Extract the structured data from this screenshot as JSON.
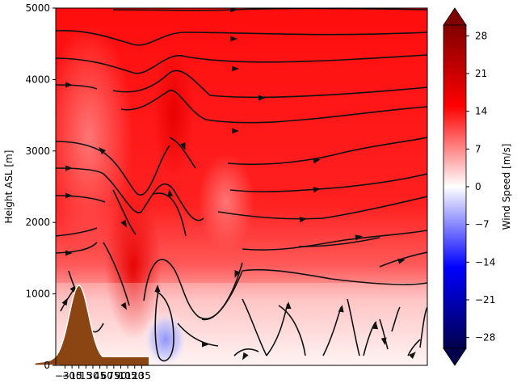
{
  "chart_data": {
    "type": "heatmap",
    "title": "",
    "ylabel": "Height ASL [m]",
    "ylim": [
      0,
      5000
    ],
    "y_ticks": [
      "0",
      "1000",
      "2000",
      "3000",
      "4000",
      "5000"
    ],
    "y_tick_values": [
      0,
      1000,
      2000,
      3000,
      4000,
      5000
    ],
    "x_ticks": [
      "−30",
      "−15",
      "0",
      "15",
      "30",
      "45",
      "60",
      "75",
      "90",
      "105",
      "120",
      "135"
    ],
    "x_tick_values": [
      -30,
      -15,
      0,
      15,
      30,
      45,
      60,
      75,
      90,
      105,
      120,
      135
    ],
    "xlim": [
      -50,
      750
    ],
    "colorbar": {
      "label": "Wind Speed [m/s]",
      "range": [
        -30,
        30
      ],
      "ticks": [
        "28",
        "21",
        "14",
        "7",
        "0",
        "−7",
        "−14",
        "−21",
        "−28"
      ],
      "tick_values": [
        28,
        21,
        14,
        7,
        0,
        -7,
        -14,
        -21,
        -28
      ],
      "colormap": "seismic",
      "extend": "both"
    },
    "terrain": {
      "peak_x": 0,
      "peak_height": 1030,
      "color": "#8b4513"
    },
    "wind_field_description": "Speeds ~18-20 m/s aloft, weakening near the surface; a negative (reverse flow) zone lee of the ridge near x≈75, height 0-600 m.",
    "grid": false
  },
  "colors": {
    "strong_positive": "#ff1a1a",
    "terrain": "#8b4513",
    "streamline": "#111111",
    "reverse_flow": "#8a94ff"
  }
}
